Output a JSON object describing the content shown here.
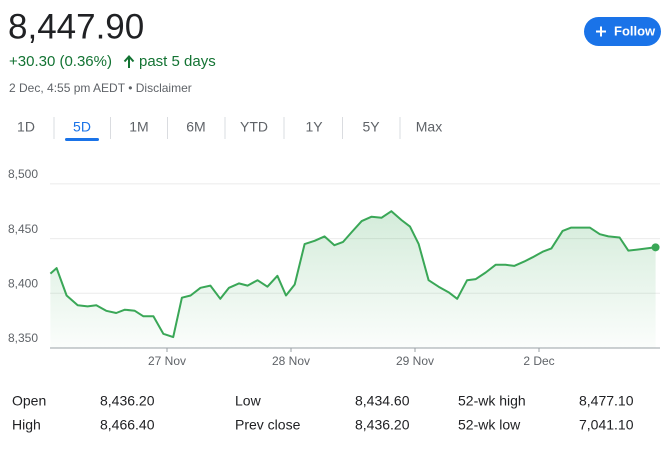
{
  "header": {
    "price": "8,447.90",
    "change": "+30.30 (0.36%)",
    "period": "past 5 days",
    "timestamp": "2 Dec, 4:55 pm AEDT",
    "separator": "•",
    "disclaimer": "Disclaimer",
    "follow": "Follow"
  },
  "tabs": {
    "items": [
      "1D",
      "5D",
      "1M",
      "6M",
      "YTD",
      "1Y",
      "5Y",
      "Max"
    ],
    "selected": 1
  },
  "chart_data": {
    "type": "line",
    "x": [
      0.06,
      0.11,
      0.19,
      0.28,
      0.36,
      0.43,
      0.51,
      0.59,
      0.66,
      0.74,
      0.81,
      0.89,
      0.97,
      1.05,
      1.12,
      1.19,
      1.27,
      1.35,
      1.43,
      1.5,
      1.58,
      1.65,
      1.73,
      1.81,
      1.89,
      1.96,
      2.03,
      2.11,
      2.19,
      2.27,
      2.35,
      2.42,
      2.49,
      2.57,
      2.65,
      2.73,
      2.81,
      2.89,
      2.96,
      3.03,
      3.11,
      3.19,
      3.27,
      3.34,
      3.42,
      3.49,
      3.57,
      3.65,
      3.73,
      3.8,
      3.88,
      3.95,
      4.03,
      4.1,
      4.19,
      4.26,
      4.34,
      4.41,
      4.49,
      4.56,
      4.65,
      4.72,
      4.8,
      4.87,
      4.94
    ],
    "series": [
      {
        "color": "#3aa757",
        "values": [
          8418,
          8423,
          8398,
          8389,
          8388,
          8389,
          8384,
          8382,
          8385,
          8384,
          8379,
          8379,
          8363,
          8360,
          8396,
          8398,
          8405,
          8407,
          8395,
          8405,
          8409,
          8407,
          8412,
          8406,
          8416,
          8398,
          8408,
          8445,
          8448,
          8452,
          8444,
          8447,
          8456,
          8466,
          8470,
          8469,
          8475,
          8467,
          8461,
          8445,
          8412,
          8406,
          8401,
          8395,
          8412,
          8413,
          8419,
          8426,
          8426,
          8425,
          8429,
          8433,
          8438,
          8441,
          8457,
          8460,
          8460,
          8460,
          8454,
          8452,
          8451,
          8439,
          8440,
          8441,
          8442
        ]
      }
    ],
    "xlim": [
      0,
      5
    ],
    "ylim": [
      8350,
      8520
    ],
    "xticks": [
      {
        "value": 1,
        "label": "27 Nov"
      },
      {
        "value": 2,
        "label": "28 Nov"
      },
      {
        "value": 3,
        "label": "29 Nov"
      },
      {
        "value": 4,
        "label": "2 Dec"
      }
    ],
    "yticks": [
      {
        "value": 8350,
        "label": "8,350"
      },
      {
        "value": 8400,
        "label": "8,400"
      },
      {
        "value": 8450,
        "label": "8,450"
      },
      {
        "value": 8500,
        "label": "8,500"
      }
    ],
    "grid": true
  },
  "stats": [
    {
      "label": "Open",
      "value": "8,436.20"
    },
    {
      "label": "Low",
      "value": "8,434.60"
    },
    {
      "label": "52-wk high",
      "value": "8,477.10"
    },
    {
      "label": "High",
      "value": "8,466.40"
    },
    {
      "label": "Prev close",
      "value": "8,436.20"
    },
    {
      "label": "52-wk low",
      "value": "7,041.10"
    }
  ]
}
